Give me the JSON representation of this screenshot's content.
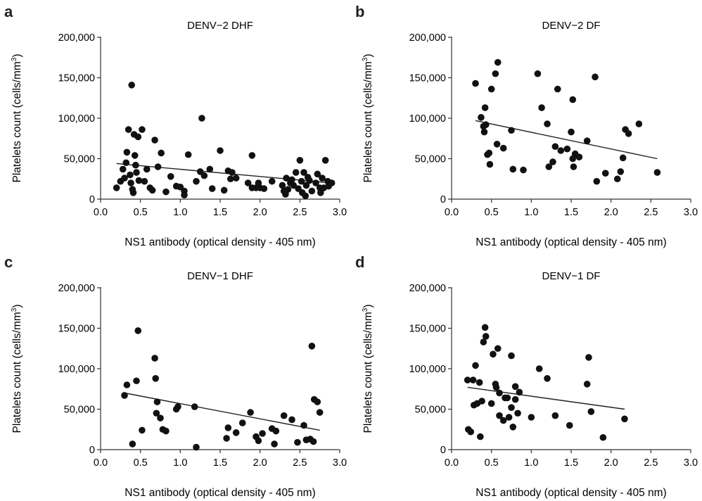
{
  "chart_data": [
    {
      "type": "scatter",
      "panel": "a",
      "title": "DENV−2 DHF",
      "xlabel": "NS1 antibody (optical density - 405 nm)",
      "ylabel": "Platelets count (cells/mm³)",
      "xlim": [
        0,
        3
      ],
      "ylim": [
        0,
        200000
      ],
      "xticks": [
        "0.0",
        "0.5",
        "1.0",
        "1.5",
        "2.0",
        "2.5",
        "3.0"
      ],
      "yticks": [
        "0",
        "50,000",
        "100,000",
        "150,000",
        "200,000"
      ],
      "trendline": {
        "x": [
          0.2,
          2.9
        ],
        "y": [
          44000,
          20000
        ]
      },
      "points": [
        [
          0.2,
          14000
        ],
        [
          0.25,
          22000
        ],
        [
          0.28,
          37000
        ],
        [
          0.3,
          26000
        ],
        [
          0.32,
          45000
        ],
        [
          0.33,
          58000
        ],
        [
          0.35,
          86000
        ],
        [
          0.37,
          30000
        ],
        [
          0.38,
          20000
        ],
        [
          0.39,
          141000
        ],
        [
          0.4,
          12000
        ],
        [
          0.41,
          8000
        ],
        [
          0.42,
          80000
        ],
        [
          0.43,
          54000
        ],
        [
          0.44,
          42000
        ],
        [
          0.45,
          33000
        ],
        [
          0.47,
          77000
        ],
        [
          0.48,
          23000
        ],
        [
          0.52,
          86000
        ],
        [
          0.55,
          22000
        ],
        [
          0.58,
          37000
        ],
        [
          0.62,
          14000
        ],
        [
          0.65,
          11000
        ],
        [
          0.68,
          73000
        ],
        [
          0.72,
          40000
        ],
        [
          0.76,
          57000
        ],
        [
          0.82,
          9000
        ],
        [
          0.88,
          28000
        ],
        [
          0.95,
          16000
        ],
        [
          1.0,
          15000
        ],
        [
          1.05,
          10000
        ],
        [
          1.05,
          5000
        ],
        [
          1.1,
          55000
        ],
        [
          1.2,
          22000
        ],
        [
          1.25,
          34000
        ],
        [
          1.27,
          100000
        ],
        [
          1.3,
          29000
        ],
        [
          1.37,
          37000
        ],
        [
          1.4,
          13000
        ],
        [
          1.5,
          60000
        ],
        [
          1.55,
          11000
        ],
        [
          1.6,
          35000
        ],
        [
          1.63,
          25000
        ],
        [
          1.65,
          33000
        ],
        [
          1.7,
          26000
        ],
        [
          1.85,
          20000
        ],
        [
          1.9,
          54000
        ],
        [
          1.9,
          14000
        ],
        [
          1.95,
          14000
        ],
        [
          1.98,
          20000
        ],
        [
          2.0,
          14000
        ],
        [
          2.05,
          13000
        ],
        [
          2.15,
          22000
        ],
        [
          2.28,
          17000
        ],
        [
          2.3,
          10000
        ],
        [
          2.32,
          6000
        ],
        [
          2.33,
          26000
        ],
        [
          2.35,
          12000
        ],
        [
          2.38,
          20000
        ],
        [
          2.4,
          24000
        ],
        [
          2.42,
          17000
        ],
        [
          2.45,
          33000
        ],
        [
          2.48,
          13000
        ],
        [
          2.5,
          48000
        ],
        [
          2.52,
          22000
        ],
        [
          2.53,
          8000
        ],
        [
          2.55,
          33000
        ],
        [
          2.57,
          4000
        ],
        [
          2.58,
          17000
        ],
        [
          2.6,
          27000
        ],
        [
          2.62,
          23000
        ],
        [
          2.65,
          10000
        ],
        [
          2.7,
          20000
        ],
        [
          2.72,
          31000
        ],
        [
          2.75,
          14000
        ],
        [
          2.76,
          8000
        ],
        [
          2.78,
          26000
        ],
        [
          2.8,
          14000
        ],
        [
          2.82,
          48000
        ],
        [
          2.85,
          22000
        ],
        [
          2.86,
          16000
        ],
        [
          2.9,
          20000
        ]
      ]
    },
    {
      "type": "scatter",
      "panel": "b",
      "title": "DENV−2 DF",
      "xlabel": "NS1 antibody (optical density - 405 nm)",
      "ylabel": "Platelets count (cells/mm³)",
      "xlim": [
        0,
        3
      ],
      "ylim": [
        0,
        200000
      ],
      "xticks": [
        "0.0",
        "0.5",
        "1.0",
        "1.5",
        "2.0",
        "2.5",
        "3.0"
      ],
      "yticks": [
        "0",
        "50,000",
        "100,000",
        "150,000",
        "200,000"
      ],
      "trendline": {
        "x": [
          0.3,
          2.58
        ],
        "y": [
          97000,
          50000
        ]
      },
      "points": [
        [
          0.3,
          143000
        ],
        [
          0.37,
          101000
        ],
        [
          0.4,
          90000
        ],
        [
          0.41,
          83000
        ],
        [
          0.42,
          113000
        ],
        [
          0.43,
          92000
        ],
        [
          0.45,
          55000
        ],
        [
          0.47,
          57000
        ],
        [
          0.48,
          43000
        ],
        [
          0.5,
          136000
        ],
        [
          0.55,
          155000
        ],
        [
          0.57,
          68000
        ],
        [
          0.58,
          169000
        ],
        [
          0.65,
          63000
        ],
        [
          0.75,
          85000
        ],
        [
          0.77,
          37000
        ],
        [
          0.9,
          36000
        ],
        [
          1.08,
          155000
        ],
        [
          1.13,
          113000
        ],
        [
          1.2,
          93000
        ],
        [
          1.22,
          40000
        ],
        [
          1.27,
          46000
        ],
        [
          1.3,
          65000
        ],
        [
          1.33,
          136000
        ],
        [
          1.37,
          60000
        ],
        [
          1.45,
          62000
        ],
        [
          1.5,
          83000
        ],
        [
          1.52,
          123000
        ],
        [
          1.52,
          50000
        ],
        [
          1.53,
          40000
        ],
        [
          1.55,
          56000
        ],
        [
          1.6,
          52000
        ],
        [
          1.7,
          72000
        ],
        [
          1.8,
          151000
        ],
        [
          1.82,
          22000
        ],
        [
          1.93,
          32000
        ],
        [
          2.08,
          25000
        ],
        [
          2.12,
          34000
        ],
        [
          2.15,
          51000
        ],
        [
          2.18,
          86000
        ],
        [
          2.22,
          81000
        ],
        [
          2.35,
          93000
        ],
        [
          2.58,
          33000
        ]
      ]
    },
    {
      "type": "scatter",
      "panel": "c",
      "title": "DENV−1 DHF",
      "xlabel": "NS1 antibody (optical density - 405 nm)",
      "ylabel": "Platelets count (cells/mm³)",
      "xlim": [
        0,
        3
      ],
      "ylim": [
        0,
        200000
      ],
      "xticks": [
        "0.0",
        "0.5",
        "1.0",
        "1.5",
        "2.0",
        "2.5",
        "3.0"
      ],
      "yticks": [
        "0",
        "50,000",
        "100,000",
        "150,000",
        "200,000"
      ],
      "trendline": {
        "x": [
          0.3,
          2.75
        ],
        "y": [
          70000,
          24000
        ]
      },
      "points": [
        [
          0.3,
          67000
        ],
        [
          0.33,
          80000
        ],
        [
          0.4,
          7000
        ],
        [
          0.45,
          85000
        ],
        [
          0.47,
          147000
        ],
        [
          0.52,
          24000
        ],
        [
          0.68,
          113000
        ],
        [
          0.69,
          88000
        ],
        [
          0.7,
          45000
        ],
        [
          0.71,
          59000
        ],
        [
          0.75,
          39000
        ],
        [
          0.78,
          25000
        ],
        [
          0.82,
          23000
        ],
        [
          0.95,
          50000
        ],
        [
          0.97,
          53000
        ],
        [
          1.18,
          53000
        ],
        [
          1.2,
          3000
        ],
        [
          1.58,
          14000
        ],
        [
          1.6,
          27000
        ],
        [
          1.7,
          21000
        ],
        [
          1.78,
          33000
        ],
        [
          1.88,
          46000
        ],
        [
          1.95,
          16000
        ],
        [
          1.98,
          11000
        ],
        [
          2.03,
          20000
        ],
        [
          2.15,
          26000
        ],
        [
          2.18,
          7000
        ],
        [
          2.2,
          23000
        ],
        [
          2.3,
          42000
        ],
        [
          2.4,
          37000
        ],
        [
          2.47,
          9000
        ],
        [
          2.55,
          30000
        ],
        [
          2.58,
          12000
        ],
        [
          2.63,
          13000
        ],
        [
          2.65,
          128000
        ],
        [
          2.67,
          10000
        ],
        [
          2.68,
          62000
        ],
        [
          2.72,
          59000
        ],
        [
          2.75,
          46000
        ]
      ]
    },
    {
      "type": "scatter",
      "panel": "d",
      "title": "DENV−1 DF",
      "xlabel": "NS1 antibody (optical density - 405 nm)",
      "ylabel": "Platelets count (cells/mm³)",
      "xlim": [
        0,
        3
      ],
      "ylim": [
        0,
        200000
      ],
      "xticks": [
        "0.0",
        "0.5",
        "1.0",
        "1.5",
        "2.0",
        "2.5",
        "3.0"
      ],
      "yticks": [
        "0",
        "50,000",
        "100,000",
        "150,000",
        "200,000"
      ],
      "trendline": {
        "x": [
          0.2,
          2.17
        ],
        "y": [
          77000,
          50000
        ]
      },
      "points": [
        [
          0.2,
          86000
        ],
        [
          0.21,
          25000
        ],
        [
          0.24,
          22000
        ],
        [
          0.27,
          86000
        ],
        [
          0.28,
          55000
        ],
        [
          0.3,
          104000
        ],
        [
          0.32,
          57000
        ],
        [
          0.35,
          83000
        ],
        [
          0.36,
          16000
        ],
        [
          0.38,
          60000
        ],
        [
          0.4,
          133000
        ],
        [
          0.42,
          151000
        ],
        [
          0.43,
          140000
        ],
        [
          0.5,
          57000
        ],
        [
          0.52,
          118000
        ],
        [
          0.55,
          81000
        ],
        [
          0.56,
          77000
        ],
        [
          0.58,
          125000
        ],
        [
          0.6,
          70000
        ],
        [
          0.6,
          42000
        ],
        [
          0.65,
          36000
        ],
        [
          0.67,
          64000
        ],
        [
          0.7,
          64000
        ],
        [
          0.72,
          40000
        ],
        [
          0.75,
          116000
        ],
        [
          0.75,
          52000
        ],
        [
          0.77,
          28000
        ],
        [
          0.8,
          78000
        ],
        [
          0.8,
          62000
        ],
        [
          0.83,
          45000
        ],
        [
          0.85,
          71000
        ],
        [
          1.0,
          40000
        ],
        [
          1.1,
          100000
        ],
        [
          1.2,
          88000
        ],
        [
          1.3,
          42000
        ],
        [
          1.48,
          30000
        ],
        [
          1.7,
          81000
        ],
        [
          1.72,
          114000
        ],
        [
          1.75,
          47000
        ],
        [
          1.9,
          15000
        ],
        [
          2.17,
          38000
        ]
      ]
    }
  ]
}
